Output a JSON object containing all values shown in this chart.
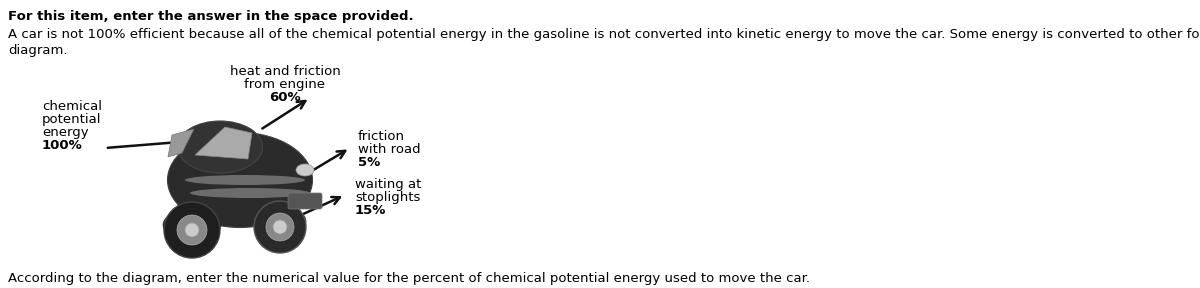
{
  "title_bold": "For this item, enter the answer in the space provided.",
  "paragraph_line1": "A car is not 100% efficient because all of the chemical potential energy in the gasoline is not converted into kinetic energy to move the car. Some energy is converted to other forms, as shown in the",
  "paragraph_line2": "diagram.",
  "label_chemical_lines": [
    "chemical",
    "potential",
    "energy",
    "100%"
  ],
  "label_heat_lines": [
    "heat and friction",
    "from engine",
    "60%"
  ],
  "label_friction_lines": [
    "friction",
    "with road",
    "5%"
  ],
  "label_stoplight_lines": [
    "waiting at",
    "stoplights",
    "15%"
  ],
  "bottom_text": "According to the diagram, enter the numerical value for the percent of chemical potential energy used to move the car.",
  "bg_color": "#ffffff",
  "text_color": "#000000",
  "font_size_body": 9.5,
  "font_size_label": 9.5,
  "arrow_color": "#111111"
}
